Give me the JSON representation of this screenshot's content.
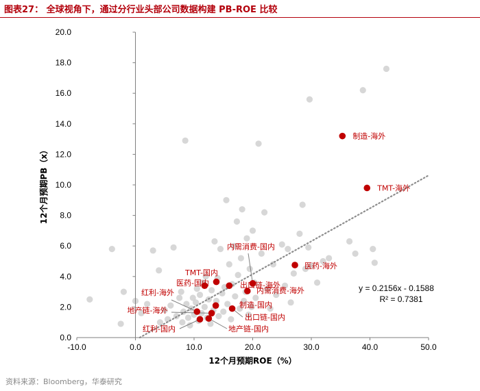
{
  "header": {
    "title": "图表27：  全球视角下，通过分行业头部公司数据构建 PB-ROE 比较"
  },
  "footer": {
    "source": "资料来源：Bloomberg，华泰研究"
  },
  "colors": {
    "title": "#b3000b",
    "highlight": "#c00000",
    "background_points": "#d0d0d0",
    "trendline": "#8c8c8c"
  },
  "chart_data": {
    "type": "scatter",
    "title": "",
    "xlabel": "12个月预期ROE（%）",
    "ylabel": "12个月预期PB（x）",
    "xlim": [
      -10,
      50
    ],
    "ylim": [
      0,
      20
    ],
    "xticks": [
      "-10.0",
      "0.0",
      "10.0",
      "20.0",
      "30.0",
      "40.0",
      "50.0"
    ],
    "yticks": [
      "0.0",
      "2.0",
      "4.0",
      "6.0",
      "8.0",
      "10.0",
      "12.0",
      "14.0",
      "16.0",
      "18.0",
      "20.0"
    ],
    "grid": false,
    "background_points": [
      [
        -7.8,
        2.5
      ],
      [
        -4,
        5.8
      ],
      [
        -2,
        3.0
      ],
      [
        -2.5,
        0.9
      ],
      [
        0,
        2.4
      ],
      [
        1,
        1.6
      ],
      [
        2,
        2.2
      ],
      [
        3,
        5.7
      ],
      [
        4,
        4.4
      ],
      [
        4.2,
        1.0
      ],
      [
        5,
        1.8
      ],
      [
        5.5,
        1.2
      ],
      [
        6,
        2.1
      ],
      [
        6.5,
        5.9
      ],
      [
        7,
        1.4
      ],
      [
        7.5,
        2.6
      ],
      [
        7.8,
        3.0
      ],
      [
        8,
        1.0
      ],
      [
        8.2,
        1.7
      ],
      [
        8.5,
        12.9
      ],
      [
        8.7,
        2.2
      ],
      [
        9,
        1.3
      ],
      [
        9.3,
        0.8
      ],
      [
        9.5,
        1.9
      ],
      [
        9.8,
        2.6
      ],
      [
        10,
        1.5
      ],
      [
        10.3,
        2.3
      ],
      [
        10.5,
        3.2
      ],
      [
        10.8,
        1.1
      ],
      [
        11,
        2.8
      ],
      [
        11.3,
        1.6
      ],
      [
        11.5,
        3.6
      ],
      [
        11.8,
        2.0
      ],
      [
        12,
        4.0
      ],
      [
        12.2,
        1.3
      ],
      [
        12.5,
        2.5
      ],
      [
        12.8,
        0.9
      ],
      [
        13,
        3.1
      ],
      [
        13.3,
        1.8
      ],
      [
        13.5,
        6.3
      ],
      [
        13.8,
        2.4
      ],
      [
        14,
        3.9
      ],
      [
        14.2,
        1.4
      ],
      [
        14.5,
        5.8
      ],
      [
        14.8,
        2.9
      ],
      [
        15,
        1.7
      ],
      [
        15.2,
        3.3
      ],
      [
        15.5,
        9.0
      ],
      [
        15.7,
        2.2
      ],
      [
        16,
        4.8
      ],
      [
        16.3,
        1.2
      ],
      [
        16.5,
        3.5
      ],
      [
        16.8,
        6.0
      ],
      [
        17,
        2.7
      ],
      [
        17.3,
        7.6
      ],
      [
        17.5,
        4.1
      ],
      [
        17.8,
        1.9
      ],
      [
        18,
        5.2
      ],
      [
        18.2,
        8.4
      ],
      [
        18.5,
        2.4
      ],
      [
        18.8,
        3.0
      ],
      [
        19,
        6.5
      ],
      [
        19.3,
        1.5
      ],
      [
        19.5,
        4.5
      ],
      [
        19.8,
        2.0
      ],
      [
        20,
        7.0
      ],
      [
        20.3,
        3.6
      ],
      [
        20.5,
        2.6
      ],
      [
        21,
        12.7
      ],
      [
        21.5,
        5.5
      ],
      [
        22,
        8.2
      ],
      [
        22.5,
        3.2
      ],
      [
        23,
        1.9
      ],
      [
        23.5,
        4.8
      ],
      [
        24,
        2.8
      ],
      [
        25,
        6.1
      ],
      [
        25.5,
        3.4
      ],
      [
        26,
        5.8
      ],
      [
        26.5,
        2.3
      ],
      [
        27,
        4.2
      ],
      [
        28,
        6.8
      ],
      [
        28.5,
        8.7
      ],
      [
        29,
        4.5
      ],
      [
        29.5,
        5.9
      ],
      [
        29.7,
        15.6
      ],
      [
        30,
        4.7
      ],
      [
        31,
        3.6
      ],
      [
        32,
        5.0
      ],
      [
        33,
        5.2
      ],
      [
        36.5,
        6.3
      ],
      [
        37.5,
        5.5
      ],
      [
        38.8,
        16.2
      ],
      [
        40.5,
        5.8
      ],
      [
        40.8,
        4.9
      ],
      [
        42.8,
        17.6
      ]
    ],
    "series": [
      {
        "points": [
          {
            "label": "制造-海外",
            "x": 35.3,
            "y": 13.2
          },
          {
            "label": "TMT-海外",
            "x": 39.5,
            "y": 9.8
          },
          {
            "label": "医药-海外",
            "x": 27.2,
            "y": 4.75
          },
          {
            "label": "内需消费-国内",
            "x": 20.0,
            "y": 3.55
          },
          {
            "label": "TMT-国内",
            "x": 13.8,
            "y": 3.65
          },
          {
            "label": "医药-国内",
            "x": 11.8,
            "y": 3.4
          },
          {
            "label": "出口链-海外",
            "x": 16.0,
            "y": 3.4
          },
          {
            "label": "内需消费-海外",
            "x": 19.1,
            "y": 3.05
          },
          {
            "label": "红利-海外",
            "x": 10.5,
            "y": 1.7
          },
          {
            "label": "制造-国内",
            "x": 13.7,
            "y": 2.1
          },
          {
            "label": "出口链-国内",
            "x": 16.5,
            "y": 1.9
          },
          {
            "label": "地产链-海外",
            "x": 13.0,
            "y": 1.6
          },
          {
            "label": "地产链-国内",
            "x": 12.5,
            "y": 1.25
          },
          {
            "label": "红利-国内",
            "x": 11.0,
            "y": 1.2
          }
        ]
      }
    ],
    "trendline": {
      "slope": 0.2156,
      "intercept": -0.1588,
      "equation": "y = 0.2156x - 0.1588",
      "r_squared": "R² = 0.7381"
    }
  }
}
